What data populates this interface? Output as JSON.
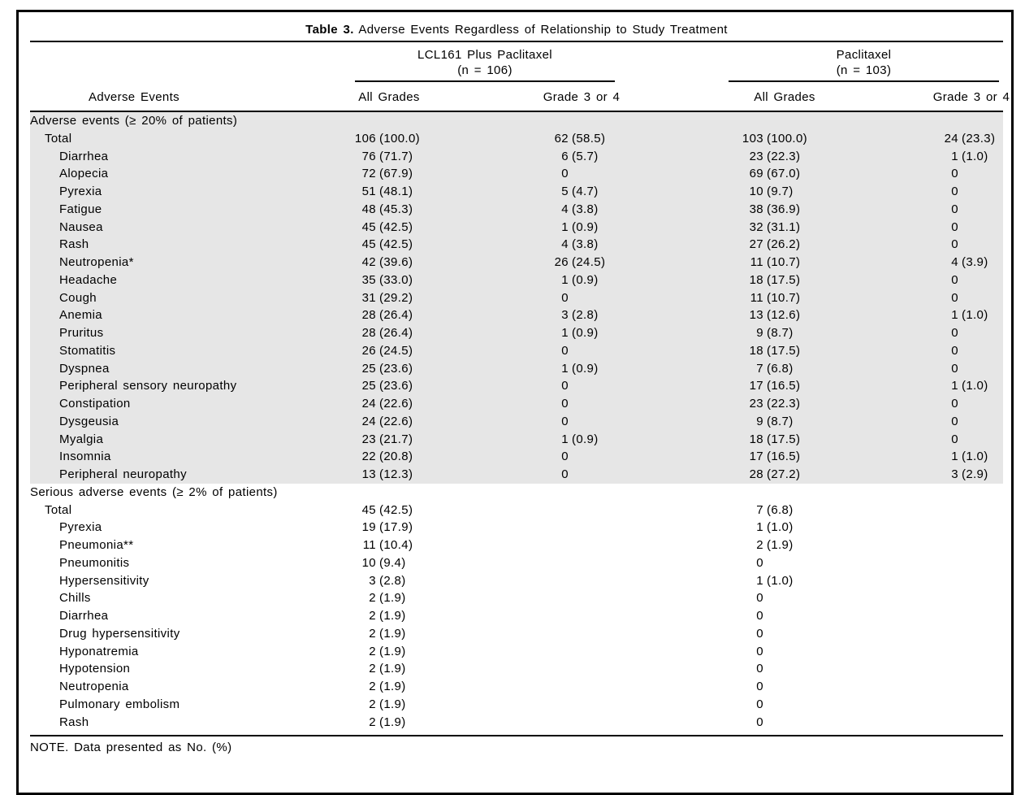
{
  "colors": {
    "shade": "#e6e6e6",
    "rule": "#000000"
  },
  "table": {
    "title_label": "Table 3.",
    "title_text": "Adverse Events Regardless of Relationship to Study Treatment",
    "groups": [
      {
        "name": "LCL161 Plus Paclitaxel",
        "n": "(n = 106)"
      },
      {
        "name": "Paclitaxel",
        "n": "(n = 103)"
      }
    ],
    "columns": {
      "label": "Adverse Events",
      "sub": [
        "All Grades",
        "Grade 3 or 4",
        "All Grades",
        "Grade 3 or 4"
      ]
    },
    "sections": [
      {
        "header": "Adverse events (≥ 20% of patients)",
        "shaded": true,
        "rows": [
          {
            "label": "Total",
            "indent": 1,
            "cells": [
              "106 (100.0)",
              "62 (58.5)",
              "103 (100.0)",
              "24 (23.3)"
            ]
          },
          {
            "label": "Diarrhea",
            "indent": 2,
            "cells": [
              "76 (71.7)",
              "6 (5.7)",
              "23 (22.3)",
              "1 (1.0)"
            ]
          },
          {
            "label": "Alopecia",
            "indent": 2,
            "cells": [
              "72 (67.9)",
              "0",
              "69 (67.0)",
              "0"
            ]
          },
          {
            "label": "Pyrexia",
            "indent": 2,
            "cells": [
              "51 (48.1)",
              "5 (4.7)",
              "10 (9.7)",
              "0"
            ]
          },
          {
            "label": "Fatigue",
            "indent": 2,
            "cells": [
              "48 (45.3)",
              "4 (3.8)",
              "38 (36.9)",
              "0"
            ]
          },
          {
            "label": "Nausea",
            "indent": 2,
            "cells": [
              "45 (42.5)",
              "1 (0.9)",
              "32 (31.1)",
              "0"
            ]
          },
          {
            "label": "Rash",
            "indent": 2,
            "cells": [
              "45 (42.5)",
              "4 (3.8)",
              "27 (26.2)",
              "0"
            ]
          },
          {
            "label": "Neutropenia*",
            "indent": 2,
            "cells": [
              "42 (39.6)",
              "26 (24.5)",
              "11 (10.7)",
              "4 (3.9)"
            ]
          },
          {
            "label": "Headache",
            "indent": 2,
            "cells": [
              "35 (33.0)",
              "1 (0.9)",
              "18 (17.5)",
              "0"
            ]
          },
          {
            "label": "Cough",
            "indent": 2,
            "cells": [
              "31 (29.2)",
              "0",
              "11 (10.7)",
              "0"
            ]
          },
          {
            "label": "Anemia",
            "indent": 2,
            "cells": [
              "28 (26.4)",
              "3 (2.8)",
              "13 (12.6)",
              "1 (1.0)"
            ]
          },
          {
            "label": "Pruritus",
            "indent": 2,
            "cells": [
              "28 (26.4)",
              "1 (0.9)",
              "9 (8.7)",
              "0"
            ]
          },
          {
            "label": "Stomatitis",
            "indent": 2,
            "cells": [
              "26 (24.5)",
              "0",
              "18 (17.5)",
              "0"
            ]
          },
          {
            "label": "Dyspnea",
            "indent": 2,
            "cells": [
              "25 (23.6)",
              "1 (0.9)",
              "7 (6.8)",
              "0"
            ]
          },
          {
            "label": "Peripheral sensory neuropathy",
            "indent": 2,
            "cells": [
              "25 (23.6)",
              "0",
              "17 (16.5)",
              "1 (1.0)"
            ]
          },
          {
            "label": "Constipation",
            "indent": 2,
            "cells": [
              "24 (22.6)",
              "0",
              "23 (22.3)",
              "0"
            ]
          },
          {
            "label": "Dysgeusia",
            "indent": 2,
            "cells": [
              "24 (22.6)",
              "0",
              "9 (8.7)",
              "0"
            ]
          },
          {
            "label": "Myalgia",
            "indent": 2,
            "cells": [
              "23 (21.7)",
              "1 (0.9)",
              "18 (17.5)",
              "0"
            ]
          },
          {
            "label": "Insomnia",
            "indent": 2,
            "cells": [
              "22 (20.8)",
              "0",
              "17 (16.5)",
              "1 (1.0)"
            ]
          },
          {
            "label": "Peripheral neuropathy",
            "indent": 2,
            "cells": [
              "13 (12.3)",
              "0",
              "28 (27.2)",
              "3 (2.9)"
            ]
          }
        ]
      },
      {
        "header": "Serious adverse events (≥ 2% of patients)",
        "shaded": false,
        "rows": [
          {
            "label": "Total",
            "indent": 1,
            "cells": [
              "45 (42.5)",
              "",
              "7 (6.8)",
              ""
            ]
          },
          {
            "label": "Pyrexia",
            "indent": 2,
            "cells": [
              "19 (17.9)",
              "",
              "1 (1.0)",
              ""
            ]
          },
          {
            "label": "Pneumonia**",
            "indent": 2,
            "cells": [
              "11 (10.4)",
              "",
              "2 (1.9)",
              ""
            ]
          },
          {
            "label": "Pneumonitis",
            "indent": 2,
            "cells": [
              "10 (9.4)",
              "",
              "0",
              ""
            ]
          },
          {
            "label": "Hypersensitivity",
            "indent": 2,
            "cells": [
              "3 (2.8)",
              "",
              "1 (1.0)",
              ""
            ]
          },
          {
            "label": "Chills",
            "indent": 2,
            "cells": [
              "2 (1.9)",
              "",
              "0",
              ""
            ]
          },
          {
            "label": "Diarrhea",
            "indent": 2,
            "cells": [
              "2 (1.9)",
              "",
              "0",
              ""
            ]
          },
          {
            "label": "Drug hypersensitivity",
            "indent": 2,
            "cells": [
              "2 (1.9)",
              "",
              "0",
              ""
            ]
          },
          {
            "label": "Hyponatremia",
            "indent": 2,
            "cells": [
              "2 (1.9)",
              "",
              "0",
              ""
            ]
          },
          {
            "label": "Hypotension",
            "indent": 2,
            "cells": [
              "2 (1.9)",
              "",
              "0",
              ""
            ]
          },
          {
            "label": "Neutropenia",
            "indent": 2,
            "cells": [
              "2 (1.9)",
              "",
              "0",
              ""
            ]
          },
          {
            "label": "Pulmonary embolism",
            "indent": 2,
            "cells": [
              "2 (1.9)",
              "",
              "0",
              ""
            ]
          },
          {
            "label": "Rash",
            "indent": 2,
            "cells": [
              "2 (1.9)",
              "",
              "0",
              ""
            ]
          }
        ]
      }
    ],
    "note": "NOTE. Data presented as No. (%)"
  }
}
